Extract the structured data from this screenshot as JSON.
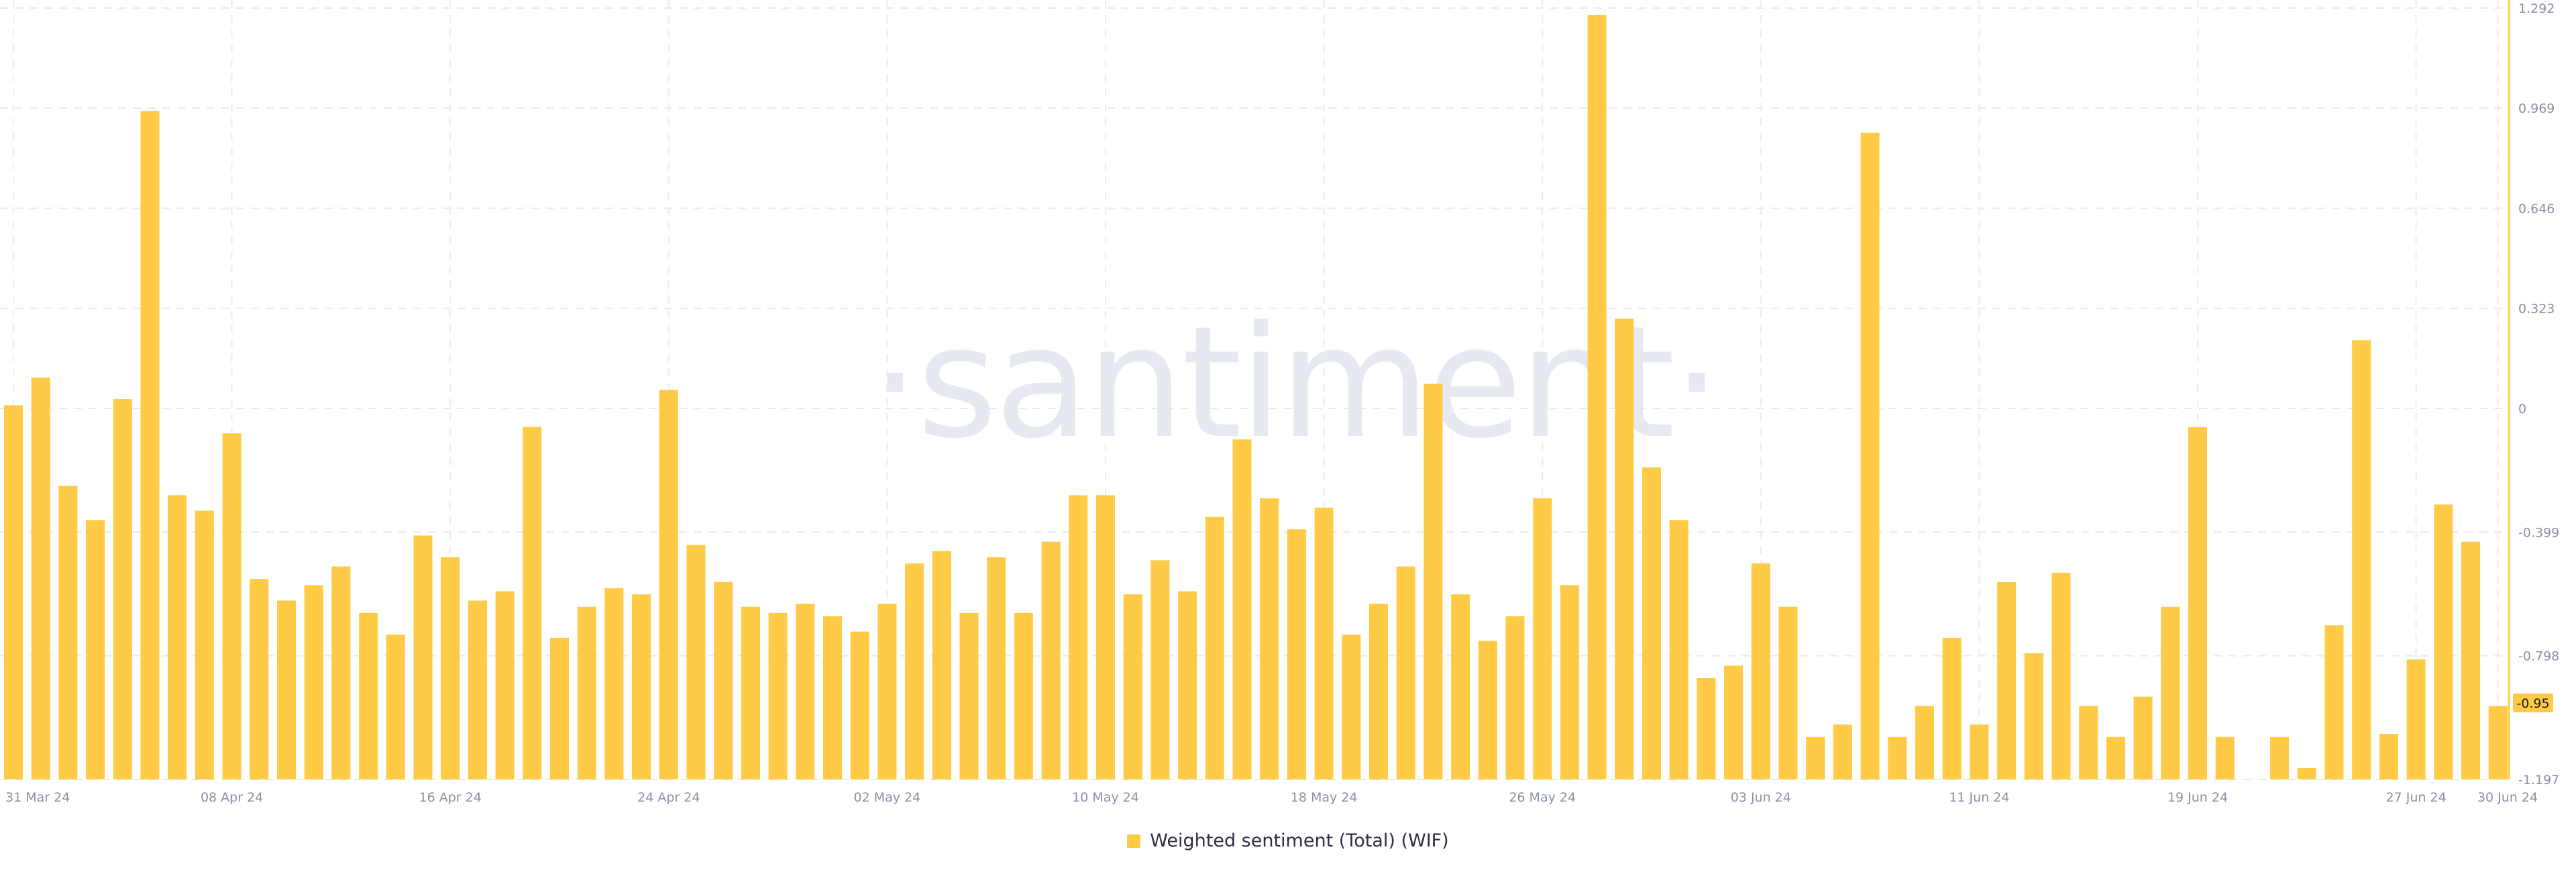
{
  "chart_data": {
    "type": "bar",
    "watermark": "·santiment·",
    "legend_position": "bottom-center",
    "grid": true,
    "color": "#ffca45",
    "current_value_label": "-0.95",
    "series": [
      {
        "name": "Weighted sentiment (Total) (WIF)",
        "values": [
          0.01,
          0.1,
          -0.25,
          -0.36,
          0.03,
          0.96,
          -0.28,
          -0.33,
          -0.08,
          -0.55,
          -0.62,
          -0.57,
          -0.51,
          -0.66,
          -0.73,
          -0.41,
          -0.48,
          -0.62,
          -0.59,
          -0.06,
          -0.74,
          -0.64,
          -0.58,
          -0.6,
          0.06,
          -0.44,
          -0.56,
          -0.64,
          -0.66,
          -0.63,
          -0.67,
          -0.72,
          -0.63,
          -0.5,
          -0.46,
          -0.66,
          -0.48,
          -0.66,
          -0.43,
          -0.28,
          -0.28,
          -0.6,
          -0.49,
          -0.59,
          -0.35,
          -0.1,
          -0.29,
          -0.39,
          -0.32,
          -0.73,
          -0.63,
          -0.51,
          0.08,
          -0.6,
          -0.75,
          -0.67,
          -0.29,
          -0.57,
          1.27,
          0.29,
          -0.19,
          -0.36,
          -0.87,
          -0.83,
          -0.5,
          -0.64,
          -1.06,
          -1.02,
          0.89,
          -1.06,
          -0.96,
          -0.74,
          -1.02,
          -0.56,
          -0.79,
          -0.53,
          -0.96,
          -1.06,
          -0.93,
          -0.64,
          -0.06,
          -1.06,
          -1.2,
          -1.06,
          -1.16,
          -0.7,
          0.22,
          -1.05,
          -0.81,
          -0.31,
          -0.43,
          -0.96
        ]
      }
    ],
    "x_ticks": [
      {
        "label": "31 Mar 24",
        "index": 0
      },
      {
        "label": "08 Apr 24",
        "index": 8
      },
      {
        "label": "16 Apr 24",
        "index": 16
      },
      {
        "label": "24 Apr 24",
        "index": 24
      },
      {
        "label": "02 May 24",
        "index": 32
      },
      {
        "label": "10 May 24",
        "index": 40
      },
      {
        "label": "18 May 24",
        "index": 48
      },
      {
        "label": "26 May 24",
        "index": 56
      },
      {
        "label": "03 Jun 24",
        "index": 64
      },
      {
        "label": "11 Jun 24",
        "index": 72
      },
      {
        "label": "19 Jun 24",
        "index": 80
      },
      {
        "label": "27 Jun 24",
        "index": 88
      },
      {
        "label": "30 Jun 24",
        "index": 91
      }
    ],
    "y_ticks": [
      {
        "label": "1.292",
        "value": 1.292
      },
      {
        "label": "0.969",
        "value": 0.969
      },
      {
        "label": "0.646",
        "value": 0.646
      },
      {
        "label": "0.323",
        "value": 0.323
      },
      {
        "label": "0",
        "value": 0
      },
      {
        "label": "-0.399",
        "value": -0.399
      },
      {
        "label": "-0.798",
        "value": -0.798
      },
      {
        "label": "-1.197",
        "value": -1.197
      }
    ],
    "ylim": [
      -1.197,
      1.292
    ]
  }
}
